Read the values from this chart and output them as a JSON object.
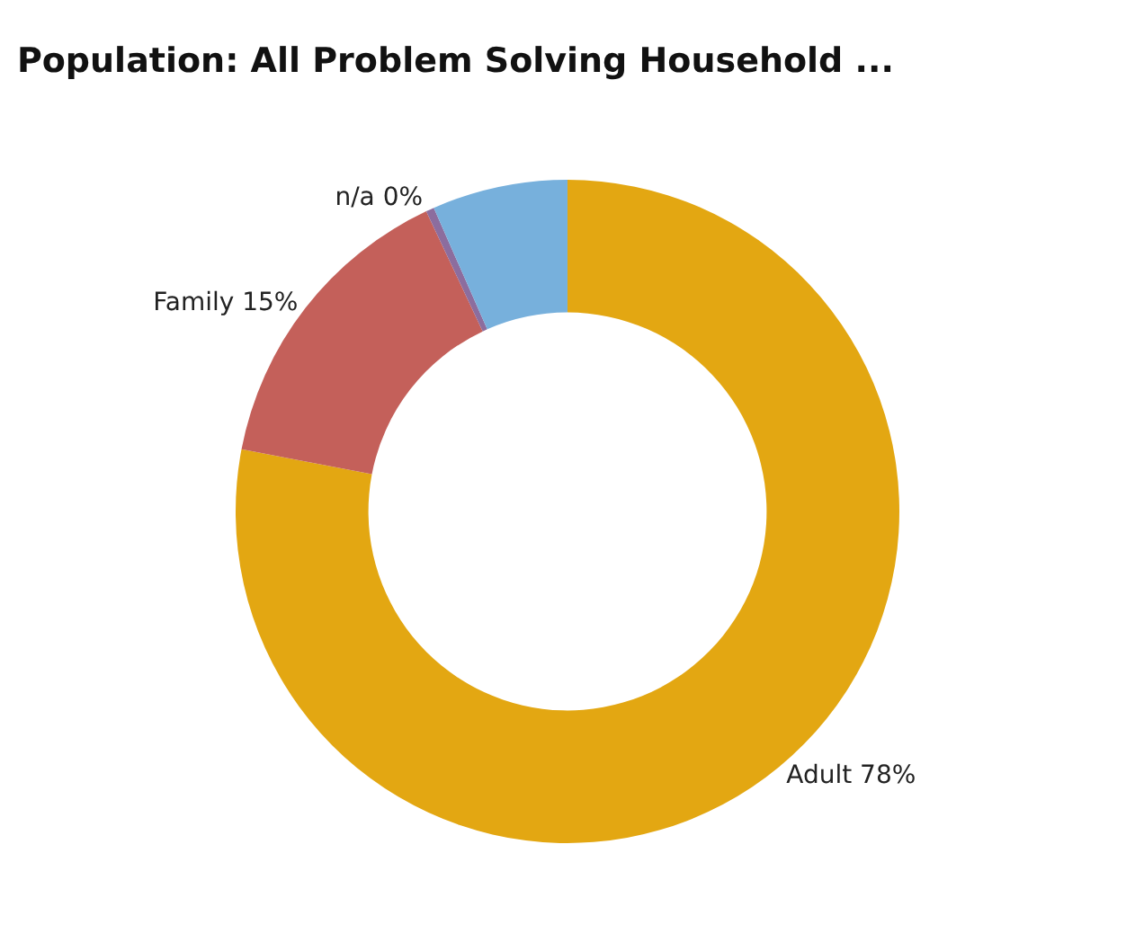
{
  "chart_data": {
    "type": "donut",
    "title": "Population: All Problem Solving Household ...",
    "categories": [
      "Adult",
      "Family",
      "n/a",
      null
    ],
    "values": [
      78,
      15,
      0.4,
      6.6
    ],
    "value_labels": [
      "78%",
      "15%",
      "0%",
      null
    ],
    "colors": [
      "#e3a712",
      "#c4605a",
      "#8c6d9e",
      "#77b0dc"
    ],
    "legend": false
  }
}
